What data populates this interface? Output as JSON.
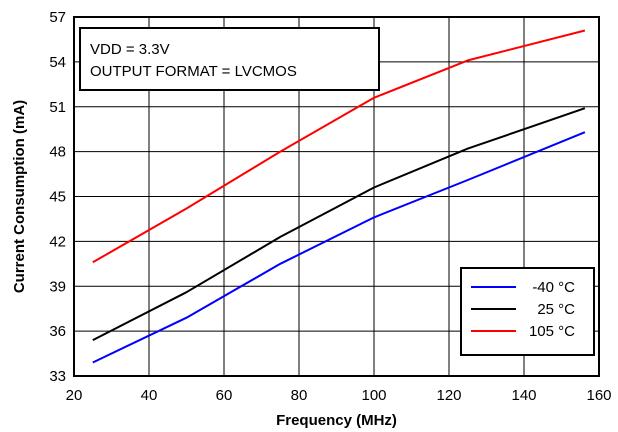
{
  "chart_data": {
    "type": "line",
    "xlabel": "Frequency (MHz)",
    "ylabel": "Current Consumption (mA)",
    "xlim": [
      20,
      160
    ],
    "ylim": [
      33,
      57
    ],
    "xticks": [
      20,
      40,
      60,
      80,
      100,
      120,
      140,
      160
    ],
    "yticks": [
      33,
      36,
      39,
      42,
      45,
      48,
      51,
      54,
      57
    ],
    "grid": true,
    "legend_position": "bottom-right",
    "annotations": [
      "VDD = 3.3V",
      "OUTPUT FORMAT = LVCMOS"
    ],
    "series": [
      {
        "name": "-40 °C",
        "color": "#0000ff",
        "x": [
          25,
          50,
          75,
          100,
          125,
          156.25
        ],
        "y": [
          33.9,
          36.9,
          40.5,
          43.6,
          46.1,
          49.3
        ]
      },
      {
        "name": "25 °C",
        "color": "#000000",
        "x": [
          25,
          50,
          75,
          100,
          125,
          156.25
        ],
        "y": [
          35.4,
          38.6,
          42.3,
          45.6,
          48.2,
          50.9
        ]
      },
      {
        "name": "105 °C",
        "color": "#ff0000",
        "x": [
          25,
          50,
          75,
          100,
          125,
          156.25
        ],
        "y": [
          40.6,
          44.2,
          48.0,
          51.6,
          54.1,
          56.1
        ]
      }
    ]
  }
}
